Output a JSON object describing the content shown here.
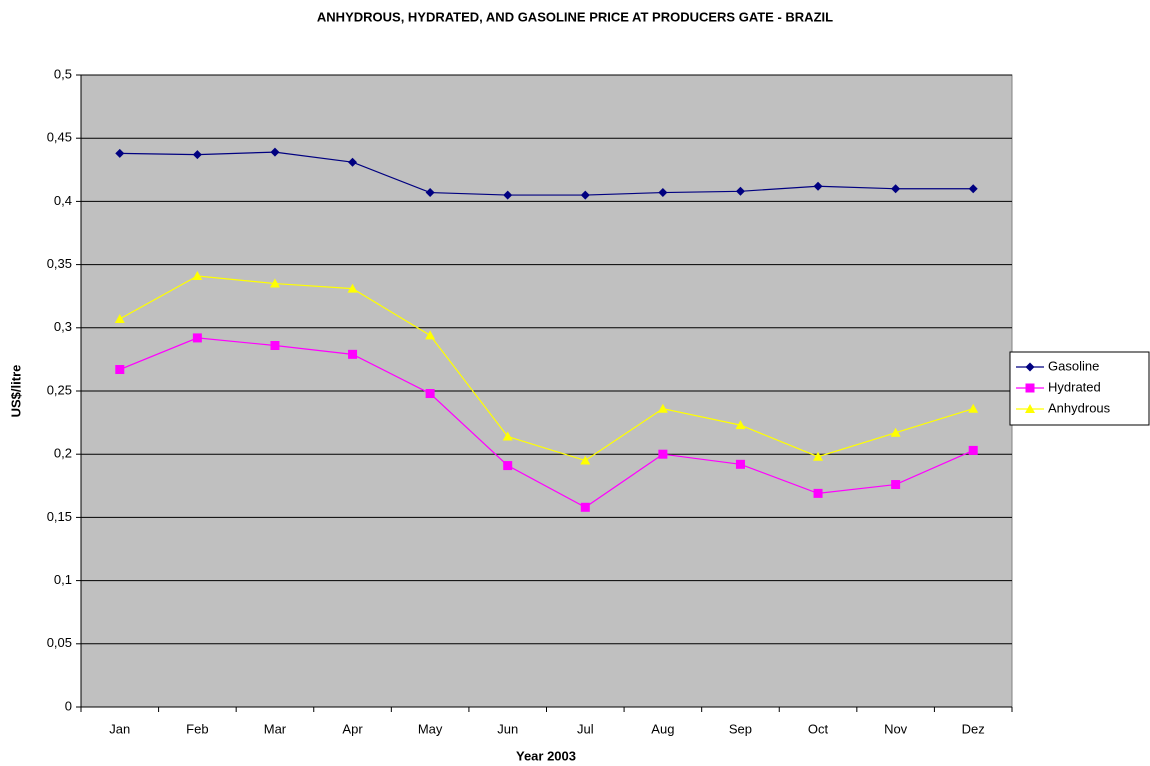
{
  "chart_data": {
    "type": "line",
    "title": "ANHYDROUS, HYDRATED, AND GASOLINE PRICE AT PRODUCERS GATE -  BRAZIL",
    "x_label": "Year 2003",
    "y_label": "US$/litre",
    "categories": [
      "Jan",
      "Feb",
      "Mar",
      "Apr",
      "May",
      "Jun",
      "Jul",
      "Aug",
      "Sep",
      "Oct",
      "Nov",
      "Dez"
    ],
    "series": [
      {
        "name": "Gasoline",
        "color": "#000080",
        "marker": "diamond",
        "values": [
          0.438,
          0.437,
          0.439,
          0.431,
          0.407,
          0.405,
          0.405,
          0.407,
          0.408,
          0.412,
          0.41,
          0.41
        ]
      },
      {
        "name": "Hydrated",
        "color": "#ff00ff",
        "marker": "square",
        "values": [
          0.267,
          0.292,
          0.286,
          0.279,
          0.248,
          0.191,
          0.158,
          0.2,
          0.192,
          0.169,
          0.176,
          0.203
        ]
      },
      {
        "name": "Anhydrous",
        "color": "#ffff00",
        "marker": "triangle",
        "values": [
          0.307,
          0.341,
          0.335,
          0.331,
          0.294,
          0.214,
          0.195,
          0.236,
          0.223,
          0.198,
          0.217,
          0.236
        ]
      }
    ],
    "ylim": [
      0,
      0.5
    ],
    "yticks": [
      0,
      {
        "value": 0.05,
        "label": "0,05"
      },
      {
        "value": 0.1,
        "label": "0,1"
      },
      {
        "value": 0.15,
        "label": "0,15"
      },
      {
        "value": 0.2,
        "label": "0,2"
      },
      {
        "value": 0.25,
        "label": "0,25"
      },
      {
        "value": 0.3,
        "label": "0,3"
      },
      {
        "value": 0.35,
        "label": "0,35"
      },
      {
        "value": 0.4,
        "label": "0,4"
      },
      {
        "value": 0.45,
        "label": "0,45"
      },
      {
        "value": 0.5,
        "label": "0,5"
      }
    ],
    "grid": true,
    "plot_background": "#c0c0c0",
    "legend": "right"
  }
}
